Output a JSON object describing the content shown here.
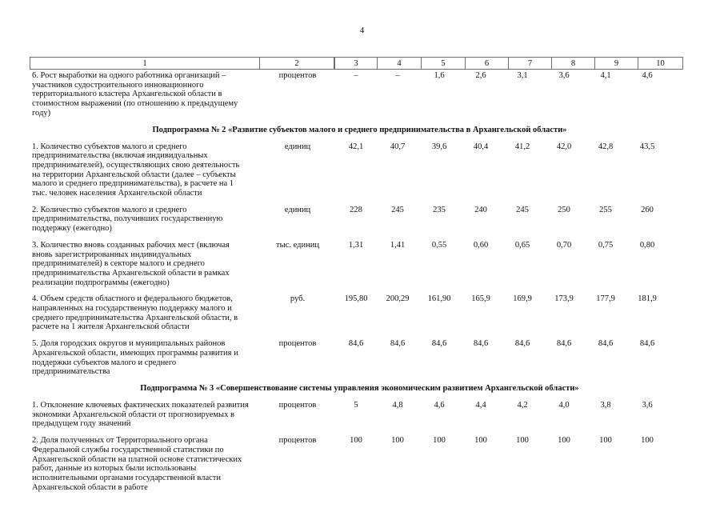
{
  "page": {
    "number": "4"
  },
  "table": {
    "header_columns": [
      "1",
      "2",
      "3",
      "4",
      "5",
      "6",
      "7",
      "8",
      "9",
      "10"
    ],
    "sections": [
      {
        "heading": null,
        "rows": [
          {
            "name": "6. Рост выработки на одного работника организаций – участников судостроительного инновационного территориального кластера Архангельской области в стоимостном выражении (по отношению к предыдущему году)",
            "unit": "процентов",
            "values": [
              "–",
              "–",
              "1,6",
              "2,6",
              "3,1",
              "3,6",
              "4,1",
              "4,6"
            ]
          }
        ]
      },
      {
        "heading": "Подпрограмма № 2 «Развитие субъектов малого и среднего предпринимательства в Архангельской области»",
        "rows": [
          {
            "name": "1. Количество субъектов малого и среднего предпринимательства (включая индивидуальных предпринимателей), осуществляющих свою деятельность на территории Архангельской области (далее – субъекты малого и среднего предпринимательства), в расчете на 1 тыс. человек населения Архангельской области",
            "unit": "единиц",
            "values": [
              "42,1",
              "40,7",
              "39,6",
              "40,4",
              "41,2",
              "42,0",
              "42,8",
              "43,5"
            ]
          },
          {
            "name": "2. Количество субъектов малого и среднего предпринимательства, получивших государственную поддержку (ежегодно)",
            "unit": "единиц",
            "values": [
              "228",
              "245",
              "235",
              "240",
              "245",
              "250",
              "255",
              "260"
            ]
          },
          {
            "name": "3. Количество вновь созданных рабочих мест (включая вновь зарегистрированных индивидуальных предпринимателей) в секторе малого и среднего предпринимательства Архангельской области в рамках реализации подпрограммы (ежегодно)",
            "unit": "тыс. единиц",
            "values": [
              "1,31",
              "1,41",
              "0,55",
              "0,60",
              "0,65",
              "0,70",
              "0,75",
              "0,80"
            ]
          },
          {
            "name": "4. Объем средств областного и федерального бюджетов, направленных на государственную поддержку малого и среднего предпринимательства Архангельской области, в расчете на 1 жителя Архангельской области",
            "unit": "руб.",
            "values": [
              "195,80",
              "200,29",
              "161,90",
              "165,9",
              "169,9",
              "173,9",
              "177,9",
              "181,9"
            ]
          },
          {
            "name": "5. Доля городских округов и муниципальных районов Архангельской области, имеющих программы развития и поддержки субъектов малого и среднего предпринимательства",
            "unit": "процентов",
            "values": [
              "84,6",
              "84,6",
              "84,6",
              "84,6",
              "84,6",
              "84,6",
              "84,6",
              "84,6"
            ]
          }
        ]
      },
      {
        "heading": "Подпрограмма № 3 «Совершенствование системы управления экономическим развитием Архангельской области»",
        "rows": [
          {
            "name": "1. Отклонение ключевых фактических показателей развития экономики Архангельской области от прогнозируемых в предыдущем году значений",
            "unit": "процентов",
            "values": [
              "5",
              "4,8",
              "4,6",
              "4,4",
              "4,2",
              "4,0",
              "3,8",
              "3,6"
            ]
          },
          {
            "name": "2. Доля полученных от Территориального органа Федеральной службы государственной статистики по Архангельской области на платной основе статистических работ, данные из которых были использованы исполнительными органами государственной власти Архангельской области в работе",
            "unit": "процентов",
            "values": [
              "100",
              "100",
              "100",
              "100",
              "100",
              "100",
              "100",
              "100"
            ]
          }
        ]
      }
    ]
  }
}
